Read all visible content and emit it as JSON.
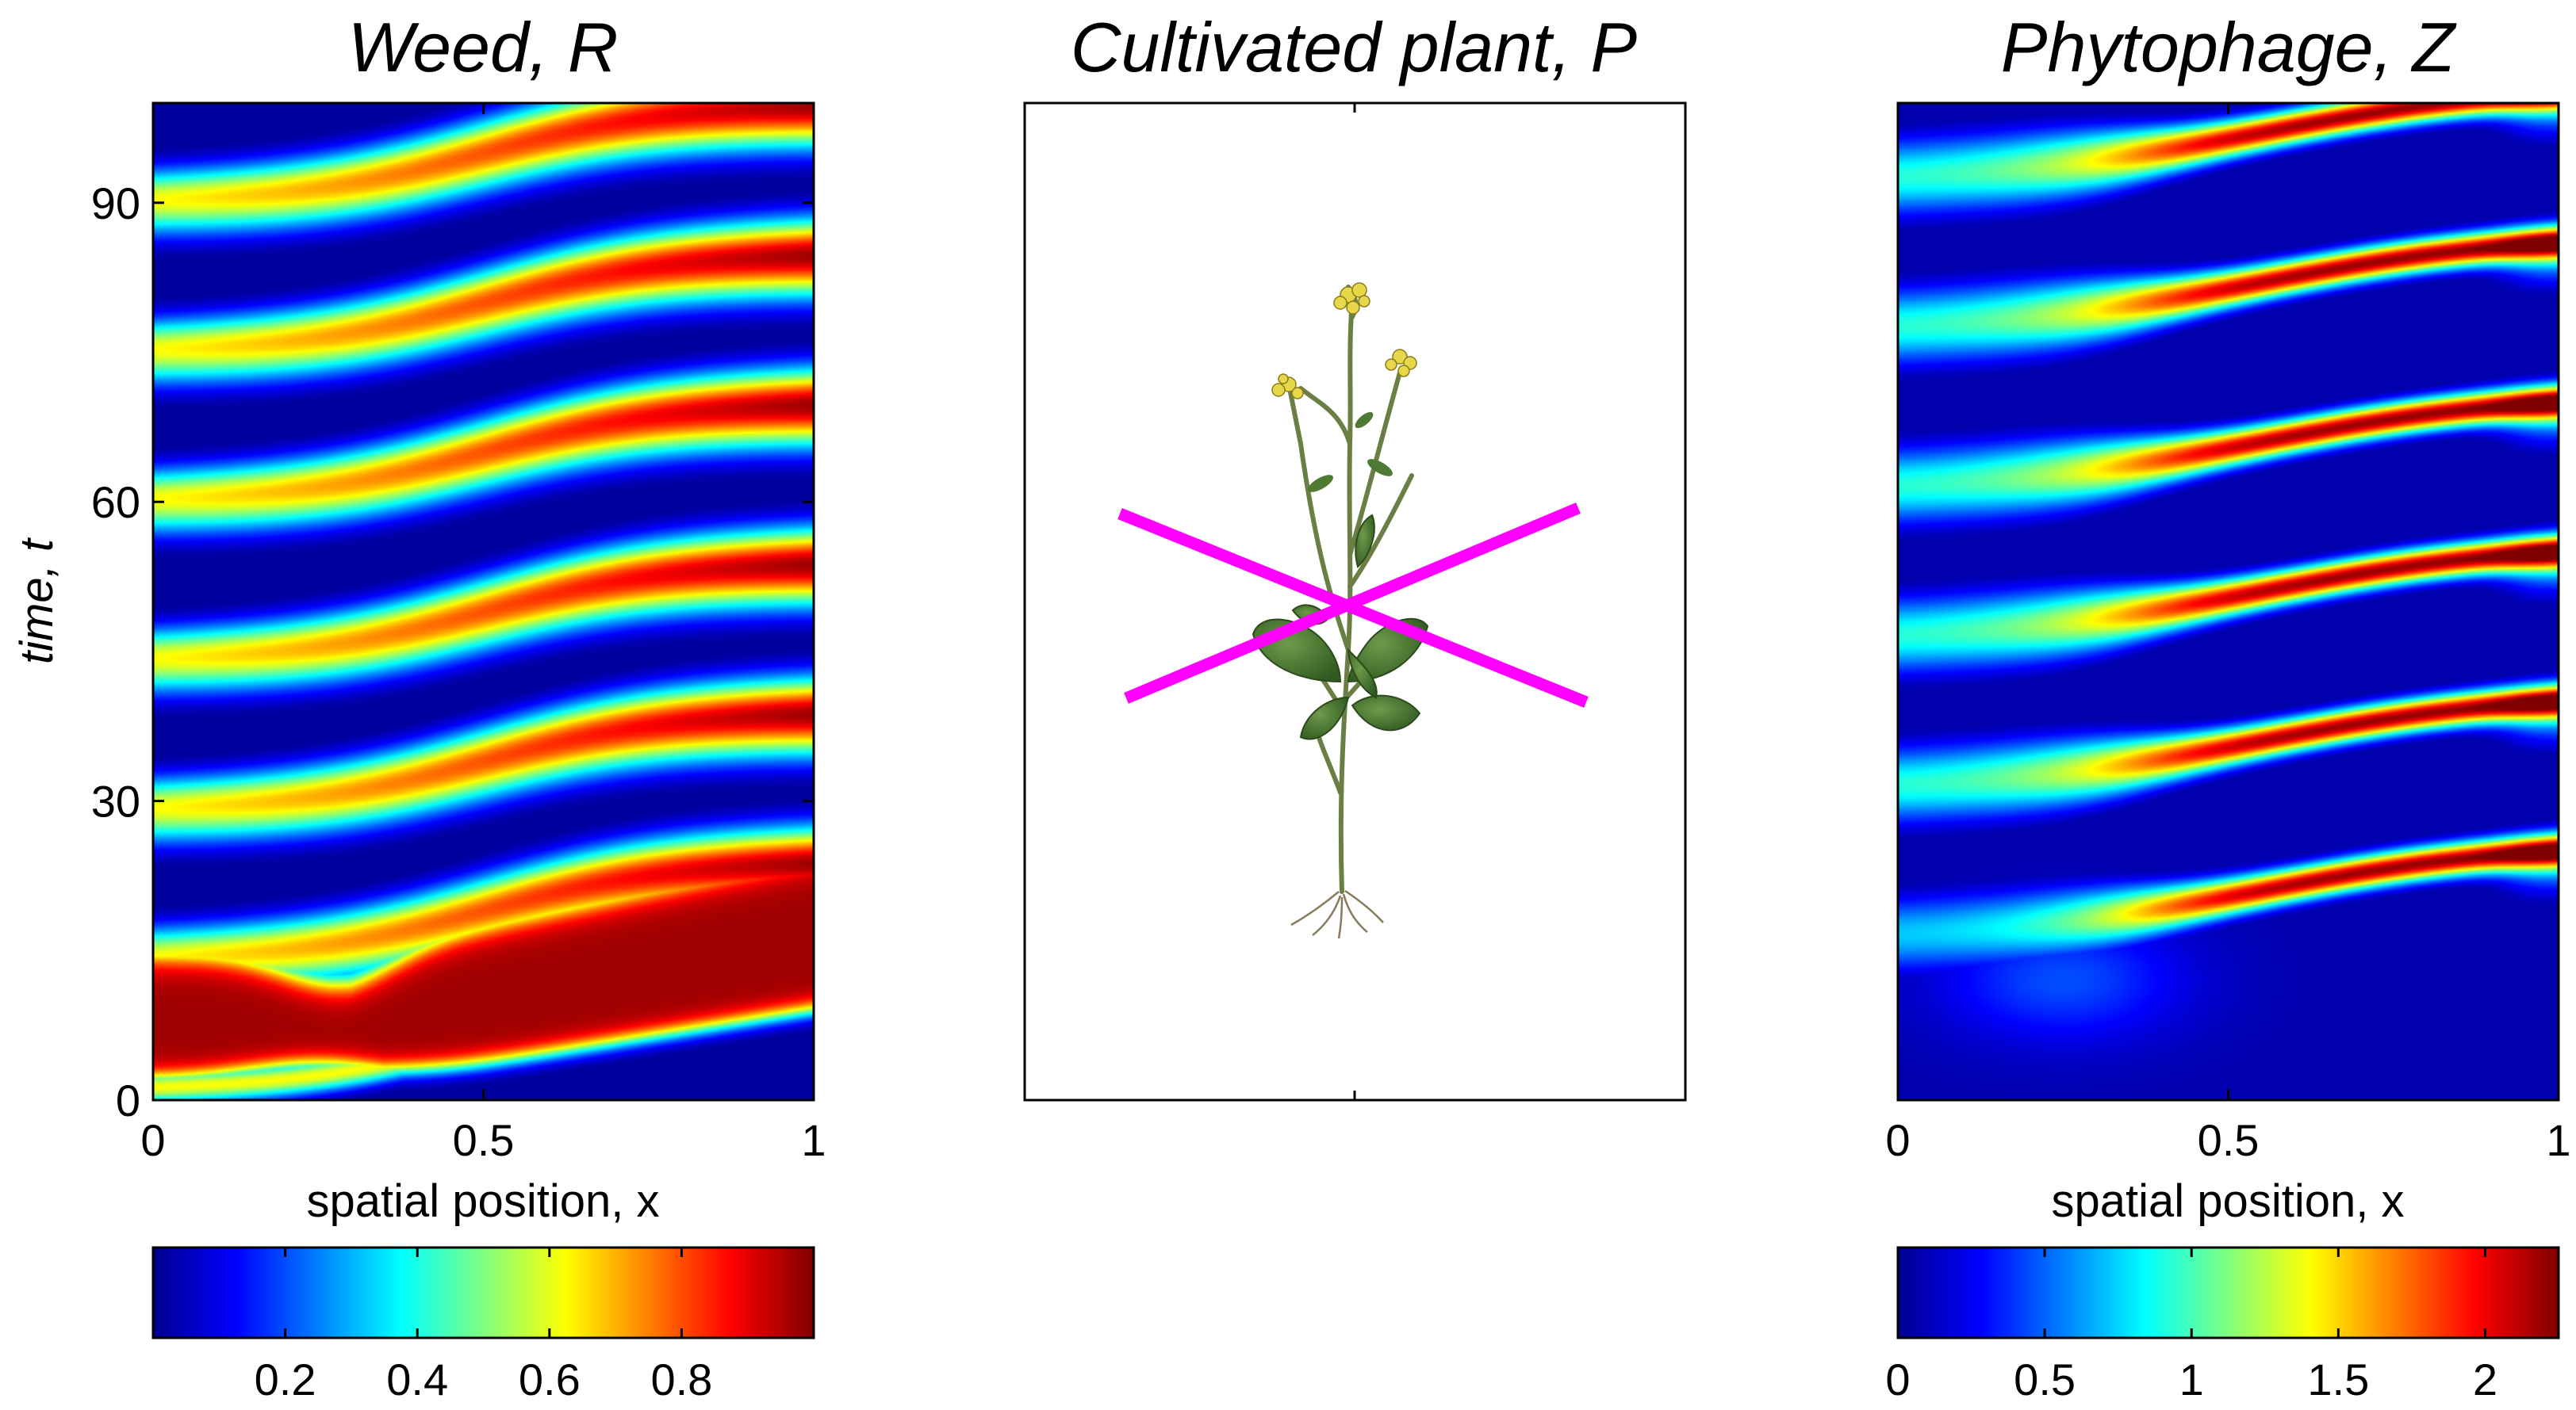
{
  "chart_data": [
    {
      "type": "heatmap",
      "title": "Weed, R",
      "xlabel": "spatial position, x",
      "ylabel": "time, t",
      "xlim": [
        0,
        1
      ],
      "ylim": [
        0,
        100
      ],
      "xticks": [
        0,
        0.5,
        1
      ],
      "xtick_labels": [
        "0",
        "0.5",
        "1"
      ],
      "yticks": [
        0,
        30,
        60,
        90
      ],
      "ytick_labels": [
        "0",
        "30",
        "60",
        "90"
      ],
      "colormap": "jet",
      "color_range": [
        0,
        1
      ],
      "colorbar_ticks": [
        0.2,
        0.4,
        0.6,
        0.8
      ],
      "colorbar_tick_labels": [
        "0.2",
        "0.4",
        "0.6",
        "0.8"
      ],
      "band_centres_t_at_x0": [
        1,
        14,
        29,
        44,
        60,
        75,
        90
      ],
      "band_shift_t_at_x1": 10,
      "peak_value": 0.97
    },
    {
      "type": "other",
      "title": "Cultivated plant, P",
      "image": "plant-illustration",
      "overlay": "magenta-cross",
      "overlay_color": "#ff00ff"
    },
    {
      "type": "heatmap",
      "title": "Phytophage, Z",
      "xlabel": "spatial position, x",
      "xlim": [
        0,
        1
      ],
      "ylim": [
        0,
        100
      ],
      "xticks": [
        0,
        0.5,
        1
      ],
      "xtick_labels": [
        "0",
        "0.5",
        "1"
      ],
      "colormap": "jet",
      "color_range": [
        0,
        2.25
      ],
      "colorbar_ticks": [
        0,
        0.5,
        1,
        1.5,
        2
      ],
      "colorbar_tick_labels": [
        "0",
        "0.5",
        "1",
        "1.5",
        "2"
      ],
      "band_centres_t_at_x0": [
        16,
        31,
        46,
        61,
        77,
        92
      ],
      "band_shift_t_at_x1": 10,
      "peak_value": 2.2
    }
  ]
}
